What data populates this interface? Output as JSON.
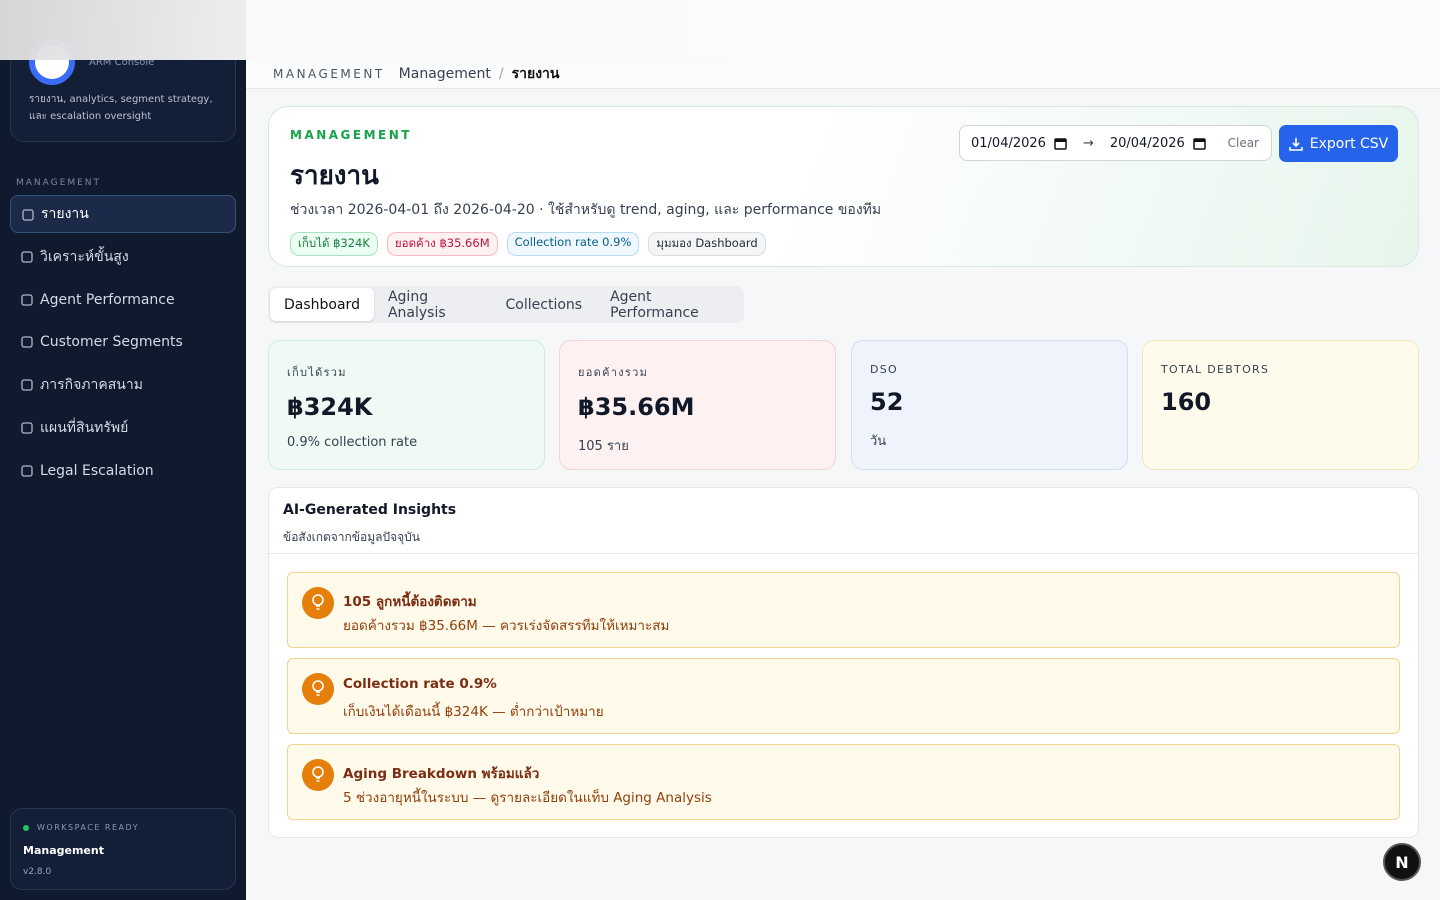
{
  "sidebar": {
    "brand_subtitle": "ARM Console",
    "description": "รายงาน, analytics, segment strategy, และ escalation oversight",
    "section_label": "MANAGEMENT",
    "nav": [
      "รายงาน",
      "วิเคราะห์ขั้นสูง",
      "Agent Performance",
      "Customer Segments",
      "ภารกิจภาคสนาม",
      "แผนที่สินทรัพย์",
      "Legal Escalation"
    ],
    "active_nav": 0,
    "status": {
      "label": "WORKSPACE READY",
      "role": "Management",
      "version": "v2.8.0"
    }
  },
  "topbar": {
    "section": "MANAGEMENT",
    "breadcrumb": [
      "Management",
      "รายงาน"
    ],
    "breadcrumb_separator": "/"
  },
  "header": {
    "eyebrow": "MANAGEMENT",
    "title": "รายงาน",
    "subtitle": "ช่วงเวลา 2026-04-01 ถึง 2026-04-20 · ใช้สำหรับดู trend, aging, และ performance ของทีม",
    "badges": [
      "เก็บได้ ฿324K",
      "ยอดค้าง ฿35.66M",
      "Collection rate 0.9%",
      "มุมมอง Dashboard"
    ],
    "date_from": "01/04/2026",
    "date_separator": "→",
    "date_to": "20/04/2026",
    "clear": "Clear",
    "export": "Export CSV"
  },
  "tabs": {
    "items": [
      "Dashboard",
      "Aging Analysis",
      "Collections",
      "Agent Performance"
    ],
    "active": 0
  },
  "kpis": [
    {
      "label": "เก็บได้รวม",
      "value": "฿324K",
      "note": "0.9% collection rate"
    },
    {
      "label": "ยอดค้างรวม",
      "value": "฿35.66M",
      "note": "105 ราย"
    },
    {
      "label": "DSO",
      "value": "52",
      "note": "วัน"
    },
    {
      "label": "TOTAL DEBTORS",
      "value": "160",
      "note": null
    }
  ],
  "insights": {
    "title": "AI-Generated Insights",
    "subtitle": "ข้อสังเกตจากข้อมูลปัจจุบัน",
    "items": [
      {
        "title": "105 ลูกหนี้ต้องติดตาม",
        "detail": "ยอดค้างรวม ฿35.66M — ควรเร่งจัดสรรทีมให้เหมาะสม"
      },
      {
        "title": "Collection rate 0.9%",
        "detail": "เก็บเงินได้เดือนนี้ ฿324K — ต่ำกว่าเป้าหมาย"
      },
      {
        "title": "Aging Breakdown พร้อมแล้ว",
        "detail": "5 ช่วงอายุหนี้ในระบบ — ดูรายละเอียดในแท็บ Aging Analysis"
      }
    ]
  },
  "fab": "N"
}
